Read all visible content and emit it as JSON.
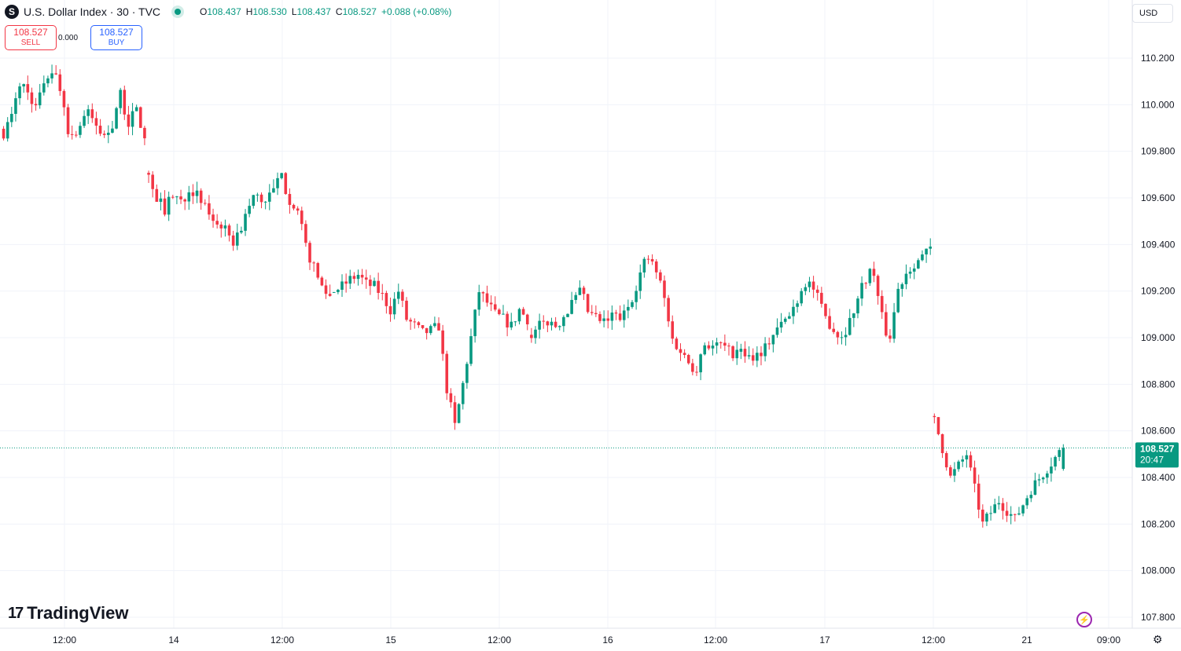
{
  "header": {
    "logo_letter": "S",
    "title": "U.S. Dollar Index · 30 · TVC",
    "open_label": "O",
    "open": "108.437",
    "high_label": "H",
    "high": "108.530",
    "low_label": "L",
    "low": "108.437",
    "close_label": "C",
    "close": "108.527",
    "change": "+0.088 (+0.08%)"
  },
  "trade": {
    "sell_price": "108.527",
    "sell_label": "SELL",
    "spread": "0.000",
    "buy_price": "108.527",
    "buy_label": "BUY"
  },
  "currency": "USD",
  "brand": {
    "mark": "17",
    "name": "TradingView"
  },
  "current_price": {
    "price": "108.527",
    "countdown": "20:47"
  },
  "colors": {
    "up": "#089981",
    "down": "#f23645",
    "grid": "#f0f3fa"
  },
  "chart_data": {
    "type": "candlestick",
    "y_ticks": [
      "110.200",
      "110.000",
      "109.800",
      "109.600",
      "109.400",
      "109.200",
      "109.000",
      "108.800",
      "108.600",
      "108.400",
      "108.200",
      "108.000",
      "107.800"
    ],
    "ylim": [
      107.75,
      110.38
    ],
    "x_ticks": [
      "12:00",
      "14",
      "12:00",
      "15",
      "12:00",
      "16",
      "12:00",
      "17",
      "12:00",
      "21",
      "09:00"
    ],
    "bar_count": 276,
    "gap_after_bar": 264,
    "last_price": 108.527,
    "sessions": [
      [
        109.88,
        109.95,
        110.1,
        110.05,
        109.98,
        110.12,
        110.15,
        110.05,
        109.85,
        109.9,
        109.97,
        109.92,
        109.86,
        109.9,
        110.05,
        109.92,
        109.98,
        109.85
      ],
      [
        109.7,
        109.6,
        109.55,
        109.62,
        109.58,
        109.65,
        109.6,
        109.55,
        109.5,
        109.48,
        109.4,
        109.45,
        109.55,
        109.62,
        109.58,
        109.62,
        109.7,
        109.6,
        109.55,
        109.4,
        109.3,
        109.22,
        109.18
      ],
      [
        109.2,
        109.22,
        109.25,
        109.27,
        109.23,
        109.22,
        109.18,
        109.12,
        109.2,
        109.08,
        109.05,
        109.02,
        109.03,
        109.05,
        108.78,
        108.62,
        108.8,
        109.0,
        109.2,
        109.15,
        109.1,
        109.08,
        109.05,
        109.12,
        109.08
      ],
      [
        109.0,
        109.05,
        109.07,
        109.05,
        109.1,
        109.15,
        109.2,
        109.1,
        109.08,
        109.06,
        109.1,
        109.08,
        109.15,
        109.25,
        109.35,
        109.3,
        109.2,
        109.0,
        108.95,
        108.9,
        108.86,
        108.98,
        108.96,
        108.97,
        108.94,
        108.93
      ],
      [
        108.95,
        108.92,
        108.93,
        108.96,
        109.02,
        109.06,
        109.1,
        109.18,
        109.25,
        109.2,
        109.1,
        109.05,
        109.0,
        109.05,
        109.15,
        109.25,
        109.3,
        109.1,
        108.98,
        109.2,
        109.28,
        109.32,
        109.35,
        109.38
      ],
      [
        108.65,
        108.4,
        108.5,
        108.2,
        108.3,
        108.22,
        108.35,
        108.44,
        108.53
      ]
    ]
  }
}
